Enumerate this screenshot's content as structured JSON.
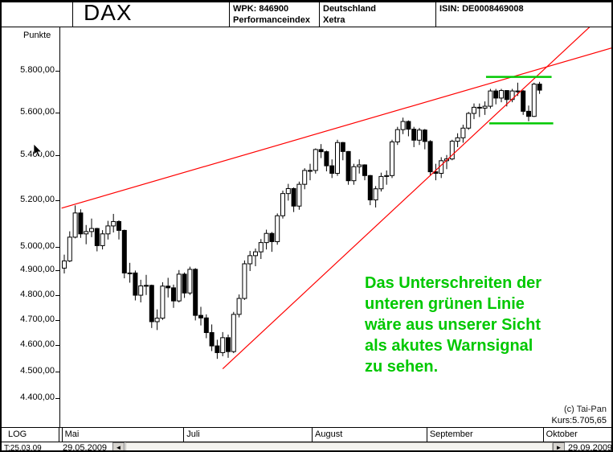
{
  "header": {
    "title": "DAX",
    "wpk": "WPK: 846900",
    "index_type": "Performanceindex",
    "country": "Deutschland",
    "exchange": "Xetra",
    "isin": "ISIN: DE0008469008"
  },
  "y_axis": {
    "title": "Punkte",
    "labels": [
      {
        "price": 5800,
        "text": "5.800,00"
      },
      {
        "price": 5600,
        "text": "5.600,00"
      },
      {
        "price": 5400,
        "text": "5.400,00"
      },
      {
        "price": 5200,
        "text": "5.200,00"
      },
      {
        "price": 5000,
        "text": "5.000,00"
      },
      {
        "price": 4900,
        "text": "4.900,00"
      },
      {
        "price": 4800,
        "text": "4.800,00"
      },
      {
        "price": 4700,
        "text": "4.700,00"
      },
      {
        "price": 4600,
        "text": "4.600,00"
      },
      {
        "price": 4500,
        "text": "4.500,00"
      },
      {
        "price": 4400,
        "text": "4.400,00"
      }
    ]
  },
  "x_axis": {
    "months": [
      {
        "label": "Mai",
        "day": -0.5
      },
      {
        "label": "Juli",
        "day": 21.8
      },
      {
        "label": "August",
        "day": 45.3
      },
      {
        "label": "September",
        "day": 66.3
      },
      {
        "label": "Oktober",
        "day": 87.6
      }
    ]
  },
  "footer": {
    "scale_label": "LOG",
    "start_label": "T:25.03.09",
    "range_start": "29.05.2009",
    "range_end": "29.09.2009",
    "scroll_left_icon": "◄",
    "scroll_right_icon": "►"
  },
  "annotations": {
    "warning_text_lines": [
      "Das Unterschreiten der",
      "unteren grünen Linie",
      "wäre aus unserer Sicht",
      "als akutes Warnsignal",
      "zu sehen."
    ],
    "copyright": "(c) Tai-Pan",
    "last_price_label": "Kurs:5.705,65"
  },
  "colors": {
    "trend": "#ff0000",
    "signal": "#00c800",
    "up": "#ffffff",
    "down": "#000000"
  },
  "chart_data": {
    "type": "candlestick",
    "title": "DAX Performanceindex (Xetra)",
    "scale": "log",
    "ylim": [
      4350,
      5950
    ],
    "x_range": [
      "29.05.2009",
      "29.09.2009"
    ],
    "last_close": 5705.65,
    "candles_ohlc": [
      [
        4910,
        4966,
        4888,
        4940
      ],
      [
        4940,
        5065,
        4935,
        5040
      ],
      [
        5040,
        5177,
        5035,
        5144
      ],
      [
        5144,
        5160,
        5037,
        5054
      ],
      [
        5054,
        5092,
        5010,
        5064
      ],
      [
        5064,
        5120,
        5040,
        5077
      ],
      [
        5077,
        5080,
        4980,
        5004
      ],
      [
        5004,
        5070,
        4988,
        5054
      ],
      [
        5054,
        5110,
        5030,
        5088
      ],
      [
        5088,
        5140,
        5060,
        5107
      ],
      [
        5107,
        5112,
        5030,
        5069
      ],
      [
        5069,
        5072,
        4868,
        4890
      ],
      [
        4890,
        4932,
        4850,
        4890
      ],
      [
        4890,
        4900,
        4778,
        4799
      ],
      [
        4799,
        4862,
        4770,
        4837
      ],
      [
        4837,
        4882,
        4800,
        4839
      ],
      [
        4839,
        4842,
        4668,
        4693
      ],
      [
        4693,
        4742,
        4660,
        4707
      ],
      [
        4707,
        4852,
        4700,
        4836
      ],
      [
        4836,
        4870,
        4790,
        4829
      ],
      [
        4829,
        4842,
        4748,
        4776
      ],
      [
        4776,
        4902,
        4770,
        4885
      ],
      [
        4885,
        4892,
        4788,
        4808
      ],
      [
        4808,
        4916,
        4800,
        4905
      ],
      [
        4905,
        4910,
        4698,
        4718
      ],
      [
        4718,
        4752,
        4678,
        4708
      ],
      [
        4708,
        4722,
        4628,
        4650
      ],
      [
        4650,
        4682,
        4578,
        4598
      ],
      [
        4598,
        4622,
        4548,
        4572
      ],
      [
        4572,
        4652,
        4558,
        4630
      ],
      [
        4630,
        4642,
        4552,
        4576
      ],
      [
        4576,
        4732,
        4570,
        4722
      ],
      [
        4722,
        4802,
        4710,
        4786
      ],
      [
        4786,
        4942,
        4780,
        4928
      ],
      [
        4928,
        4982,
        4898,
        4962
      ],
      [
        4962,
        4992,
        4918,
        4978
      ],
      [
        4978,
        5032,
        4948,
        5017
      ],
      [
        5017,
        5072,
        4988,
        5056
      ],
      [
        5056,
        5062,
        4978,
        5021
      ],
      [
        5021,
        5142,
        5008,
        5132
      ],
      [
        5132,
        5242,
        5120,
        5229
      ],
      [
        5229,
        5272,
        5198,
        5251
      ],
      [
        5251,
        5256,
        5148,
        5174
      ],
      [
        5174,
        5282,
        5158,
        5270
      ],
      [
        5270,
        5342,
        5248,
        5332
      ],
      [
        5332,
        5362,
        5288,
        5332
      ],
      [
        5332,
        5432,
        5318,
        5427
      ],
      [
        5427,
        5452,
        5388,
        5417
      ],
      [
        5417,
        5422,
        5328,
        5353
      ],
      [
        5353,
        5382,
        5298,
        5319
      ],
      [
        5319,
        5472,
        5308,
        5459
      ],
      [
        5459,
        5462,
        5378,
        5418
      ],
      [
        5418,
        5420,
        5268,
        5286
      ],
      [
        5286,
        5362,
        5268,
        5349
      ],
      [
        5349,
        5382,
        5318,
        5357
      ],
      [
        5357,
        5360,
        5288,
        5309
      ],
      [
        5309,
        5312,
        5178,
        5201
      ],
      [
        5201,
        5262,
        5168,
        5250
      ],
      [
        5250,
        5322,
        5238,
        5305
      ],
      [
        5305,
        5332,
        5268,
        5309
      ],
      [
        5309,
        5472,
        5298,
        5462
      ],
      [
        5462,
        5532,
        5448,
        5519
      ],
      [
        5519,
        5575,
        5498,
        5557
      ],
      [
        5557,
        5562,
        5488,
        5521
      ],
      [
        5521,
        5532,
        5438,
        5470
      ],
      [
        5470,
        5527,
        5448,
        5517
      ],
      [
        5517,
        5522,
        5428,
        5464
      ],
      [
        5464,
        5470,
        5308,
        5326
      ],
      [
        5326,
        5362,
        5288,
        5319
      ],
      [
        5319,
        5392,
        5298,
        5376
      ],
      [
        5376,
        5402,
        5338,
        5384
      ],
      [
        5384,
        5472,
        5378,
        5465
      ],
      [
        5465,
        5502,
        5438,
        5481
      ],
      [
        5481,
        5542,
        5458,
        5526
      ],
      [
        5526,
        5602,
        5518,
        5595
      ],
      [
        5595,
        5642,
        5568,
        5624
      ],
      [
        5624,
        5642,
        5578,
        5620
      ],
      [
        5620,
        5652,
        5588,
        5629
      ],
      [
        5629,
        5712,
        5618,
        5702
      ],
      [
        5702,
        5712,
        5638,
        5668
      ],
      [
        5668,
        5712,
        5648,
        5704
      ],
      [
        5704,
        5706,
        5628,
        5661
      ],
      [
        5661,
        5712,
        5648,
        5702
      ],
      [
        5702,
        5742,
        5678,
        5702
      ],
      [
        5702,
        5706,
        5588,
        5605
      ],
      [
        5605,
        5632,
        5558,
        5581
      ],
      [
        5581,
        5742,
        5578,
        5735
      ],
      [
        5735,
        5746,
        5688,
        5706
      ]
    ],
    "trend_lines": [
      {
        "from": {
          "day": -0.5,
          "price": 5165
        },
        "to": {
          "day": 100.5,
          "price": 5915
        }
      },
      {
        "from": {
          "day": 29,
          "price": 4510
        },
        "to": {
          "day": 97,
          "price": 6040
        }
      }
    ],
    "support_lines": [
      {
        "price": 5770,
        "day_from": 77.2,
        "day_to": 89.2
      },
      {
        "price": 5548,
        "day_from": 77.8,
        "day_to": 89.5
      }
    ]
  }
}
